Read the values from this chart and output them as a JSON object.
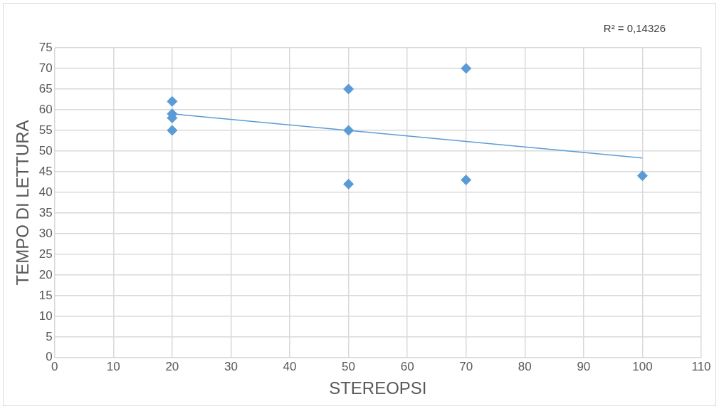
{
  "chart_data": {
    "type": "scatter",
    "xlabel": "STEREOPSI",
    "ylabel": "TEMPO DI LETTURA",
    "annotations": [
      "R² = 0,14326"
    ],
    "series": [
      {
        "color": "#5b9bd5",
        "x": [
          20,
          20,
          20,
          20,
          50,
          50,
          50,
          70,
          70,
          100
        ],
        "values": [
          62,
          59,
          58,
          55,
          65,
          55,
          42,
          70,
          43,
          44
        ]
      },
      {
        "type": "line",
        "color": "#5b9bd5",
        "x": [
          20,
          100
        ],
        "values": [
          59,
          48.3
        ],
        "marker": "none"
      }
    ],
    "xlim": [
      0,
      110
    ],
    "xticks": [
      0,
      10,
      20,
      30,
      40,
      50,
      60,
      70,
      80,
      90,
      100,
      110
    ],
    "ylim": [
      0,
      75
    ],
    "yticks": [
      0,
      5,
      10,
      15,
      20,
      25,
      30,
      35,
      40,
      45,
      50,
      55,
      60,
      65,
      70,
      75
    ],
    "grid": true,
    "legend": false,
    "marker": "diamond"
  }
}
